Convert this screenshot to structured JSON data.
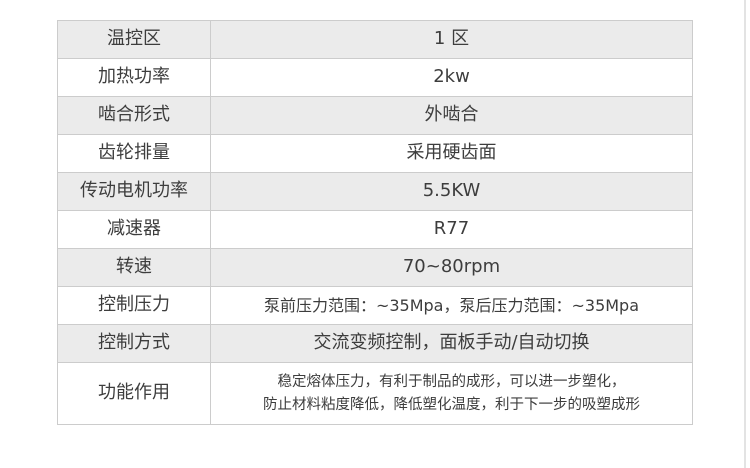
{
  "page": {
    "background_color": "#ffffff",
    "edge_line_color": "#e3e3e3"
  },
  "table": {
    "border_color": "#cccccc",
    "stripe_color": "#ebebeb",
    "text_color": "#3d3d3d",
    "rows": [
      {
        "label": "温控区",
        "value": "1 区"
      },
      {
        "label": "加热功率",
        "value": "2kw"
      },
      {
        "label": "啮合形式",
        "value": "外啮合"
      },
      {
        "label": "齿轮排量",
        "value": "采用硬齿面"
      },
      {
        "label": "传动电机功率",
        "value": "5.5KW"
      },
      {
        "label": "减速器",
        "value": "R77"
      },
      {
        "label": "转速",
        "value": "70~80rpm"
      },
      {
        "label": "控制压力",
        "value": "泵前压力范围：~35Mpa，泵后压力范围：~35Mpa"
      },
      {
        "label": "控制方式",
        "value": "交流变频控制，面板手动/自动切换"
      },
      {
        "label": "功能作用",
        "value": [
          "稳定熔体压力，有利于制品的成形，可以进一步塑化，",
          "防止材料粘度降低，降低塑化温度，利于下一步的吸塑成形"
        ]
      }
    ]
  }
}
